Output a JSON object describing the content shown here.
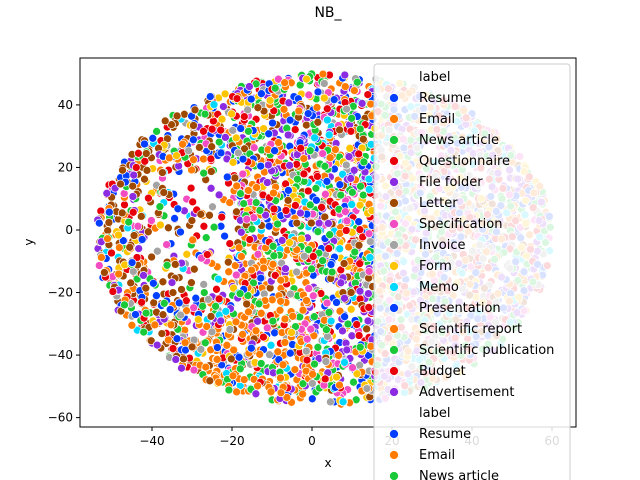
{
  "chart_data": {
    "type": "scatter",
    "title": "NB_",
    "xlabel": "x",
    "ylabel": "y",
    "xlim": [
      -58,
      66
    ],
    "ylim": [
      -63,
      55
    ],
    "xticks": [
      "−40",
      "−20",
      "0",
      "20",
      "40",
      "60"
    ],
    "xtick_values": [
      -40,
      -20,
      0,
      20,
      40,
      60
    ],
    "yticks": [
      "−60",
      "−40",
      "−20",
      "0",
      "20",
      "40"
    ],
    "ytick_values": [
      -60,
      -40,
      -20,
      0,
      20,
      40
    ],
    "grid": false,
    "legend_placement": "upper-right, overflowing the axes",
    "legend_title": "label",
    "legend_second_title": "label",
    "cloud": {
      "x_center": 3,
      "y_center": -3,
      "x_radius": 57,
      "y_radius": 53
    },
    "series": [
      {
        "name": "Resume",
        "color": "#023eff"
      },
      {
        "name": "Email",
        "color": "#ff7c00"
      },
      {
        "name": "News article",
        "color": "#1ac938"
      },
      {
        "name": "Questionnaire",
        "color": "#e8000b"
      },
      {
        "name": "File folder",
        "color": "#8b2be2"
      },
      {
        "name": "Letter",
        "color": "#9f4800"
      },
      {
        "name": "Specification",
        "color": "#f14cc1"
      },
      {
        "name": "Invoice",
        "color": "#a3a3a3"
      },
      {
        "name": "Form",
        "color": "#ffc400"
      },
      {
        "name": "Memo",
        "color": "#00d7ff"
      },
      {
        "name": "Presentation",
        "color": "#023eff"
      },
      {
        "name": "Scientific report",
        "color": "#ff7c00"
      },
      {
        "name": "Scientific publication",
        "color": "#1ac938"
      },
      {
        "name": "Budget",
        "color": "#e8000b"
      },
      {
        "name": "Advertisement",
        "color": "#8b2be2"
      }
    ],
    "second_legend_entries": [
      "Resume",
      "Email",
      "News article"
    ]
  }
}
